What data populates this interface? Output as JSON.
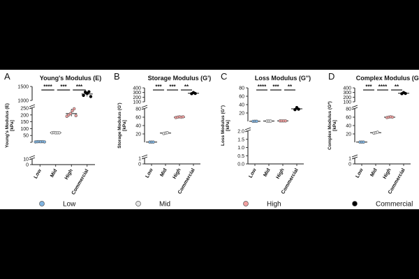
{
  "chart_data": [
    {
      "type": "scatter",
      "panel_letter": "A",
      "title": "Young's Modulus (E)",
      "ylabel": "Young's Modulus (E)",
      "ylabel_unit": "[kPa]",
      "categories": [
        "Low",
        "Mid",
        "High",
        "Commercial"
      ],
      "broken_axis": true,
      "segments": [
        {
          "range": [
            0,
            10
          ],
          "ticks": [
            0,
            10
          ],
          "tick_labels": [
            "0",
            "10"
          ]
        },
        {
          "range": [
            0,
            250
          ],
          "ticks": [
            0,
            50,
            100,
            150,
            200,
            250
          ],
          "tick_labels": [
            "",
            "50",
            "100",
            "150",
            "200",
            "250"
          ]
        },
        {
          "range": [
            1000,
            1500
          ],
          "ticks": [
            1000,
            1500
          ],
          "tick_labels": [
            "1000",
            "1500"
          ]
        }
      ],
      "series": [
        {
          "name": "Low",
          "mean": 4,
          "points": [
            3,
            4,
            5,
            4,
            5,
            3
          ]
        },
        {
          "name": "Mid",
          "mean": 70,
          "points": [
            70,
            71,
            69,
            70,
            70
          ]
        },
        {
          "name": "High",
          "mean": 210,
          "points": [
            190,
            200,
            210,
            230,
            245,
            195
          ]
        },
        {
          "name": "Commercial",
          "mean": 1230,
          "points": [
            1180,
            1300,
            1250,
            1310,
            1140
          ]
        }
      ],
      "significance": [
        {
          "from": 0,
          "to": 1,
          "label": "****"
        },
        {
          "from": 1,
          "to": 2,
          "label": "***"
        },
        {
          "from": 2,
          "to": 3,
          "label": "***"
        }
      ]
    },
    {
      "type": "scatter",
      "panel_letter": "B",
      "title": "Storage Modulus (G')",
      "ylabel": "Storage Modulus (G')",
      "ylabel_unit": "[kPa]",
      "categories": [
        "Low",
        "Mid",
        "High",
        "Commercial"
      ],
      "broken_axis": true,
      "segments": [
        {
          "range": [
            0,
            1
          ],
          "ticks": [
            0,
            1
          ],
          "tick_labels": [
            "0",
            "1"
          ]
        },
        {
          "range": [
            0,
            80
          ],
          "ticks": [
            20,
            40,
            60,
            80
          ],
          "tick_labels": [
            "20",
            "40",
            "60",
            "80"
          ]
        },
        {
          "range": [
            100,
            400
          ],
          "ticks": [
            100,
            200,
            300,
            400
          ],
          "tick_labels": [
            "100",
            "200",
            "300",
            "400"
          ]
        }
      ],
      "series": [
        {
          "name": "Low",
          "mean": 0.5,
          "points": [
            0.45,
            0.5,
            0.55
          ]
        },
        {
          "name": "Mid",
          "mean": 22,
          "points": [
            21,
            22,
            23
          ]
        },
        {
          "name": "High",
          "mean": 60,
          "points": [
            59,
            60,
            61,
            60,
            61
          ]
        },
        {
          "name": "Commercial",
          "mean": 285,
          "points": [
            275,
            300,
            280
          ]
        }
      ],
      "significance": [
        {
          "from": 0,
          "to": 1,
          "label": "***"
        },
        {
          "from": 1,
          "to": 2,
          "label": "***"
        },
        {
          "from": 2,
          "to": 3,
          "label": "**"
        }
      ]
    },
    {
      "type": "scatter",
      "panel_letter": "C",
      "title": "Loss Modulus (G'')",
      "ylabel": "Loss Modulus (G'')",
      "ylabel_unit": "[kPa]",
      "categories": [
        "Low",
        "Mid",
        "High",
        "Commercial"
      ],
      "broken_axis": true,
      "segments": [
        {
          "range": [
            0,
            2
          ],
          "ticks": [
            0,
            0.5,
            1,
            1.5,
            2
          ],
          "tick_labels": [
            "0.0",
            "0.5",
            "1.0",
            "1.5",
            "2.0"
          ]
        },
        {
          "range": [
            0,
            80
          ],
          "ticks": [
            20,
            40,
            60,
            80
          ],
          "tick_labels": [
            "20",
            "40",
            "60",
            "80"
          ]
        }
      ],
      "series": [
        {
          "name": "Low",
          "mean": 0.2,
          "points": [
            0.18,
            0.2,
            0.22
          ]
        },
        {
          "name": "Mid",
          "mean": 0.75,
          "points": [
            0.73,
            0.75,
            0.77
          ]
        },
        {
          "name": "High",
          "mean": 1.2,
          "points": [
            1.18,
            1.2,
            1.22,
            1.21
          ]
        },
        {
          "name": "Commercial",
          "mean": 30,
          "points": [
            28,
            33,
            29
          ]
        }
      ],
      "significance": [
        {
          "from": 0,
          "to": 1,
          "label": "****"
        },
        {
          "from": 1,
          "to": 2,
          "label": "***"
        },
        {
          "from": 2,
          "to": 3,
          "label": "**"
        }
      ]
    },
    {
      "type": "scatter",
      "panel_letter": "D",
      "title": "Complex Modulus (G*)",
      "ylabel": "Complex Modulus (G*)",
      "ylabel_unit": "[kPa]",
      "categories": [
        "Low",
        "Mid",
        "High",
        "Commercial"
      ],
      "broken_axis": true,
      "segments": [
        {
          "range": [
            0,
            1
          ],
          "ticks": [
            0,
            1
          ],
          "tick_labels": [
            "0",
            "1"
          ]
        },
        {
          "range": [
            0,
            80
          ],
          "ticks": [
            20,
            40,
            60,
            80
          ],
          "tick_labels": [
            "20",
            "40",
            "60",
            "80"
          ]
        },
        {
          "range": [
            100,
            400
          ],
          "ticks": [
            100,
            200,
            300,
            400
          ],
          "tick_labels": [
            "100",
            "200",
            "300",
            "400"
          ]
        }
      ],
      "series": [
        {
          "name": "Low",
          "mean": 0.5,
          "points": [
            0.45,
            0.5,
            0.55
          ]
        },
        {
          "name": "Mid",
          "mean": 23,
          "points": [
            22,
            23,
            24
          ]
        },
        {
          "name": "High",
          "mean": 60,
          "points": [
            59,
            60,
            61,
            60
          ]
        },
        {
          "name": "Commercial",
          "mean": 285,
          "points": [
            275,
            300,
            280
          ]
        }
      ],
      "significance": [
        {
          "from": 0,
          "to": 1,
          "label": "***"
        },
        {
          "from": 1,
          "to": 2,
          "label": "****"
        },
        {
          "from": 2,
          "to": 3,
          "label": "**"
        }
      ]
    }
  ],
  "legend": [
    {
      "label": "Low",
      "color": "#7fb3e0"
    },
    {
      "label": "Mid",
      "color": "#e6e6e6"
    },
    {
      "label": "High",
      "color": "#f2a0a0"
    },
    {
      "label": "Commercial",
      "color": "#000000"
    }
  ],
  "colors": {
    "Low": "#7fb3e0",
    "Mid": "#e6e6e6",
    "High": "#f2a0a0",
    "Commercial": "#000000"
  }
}
